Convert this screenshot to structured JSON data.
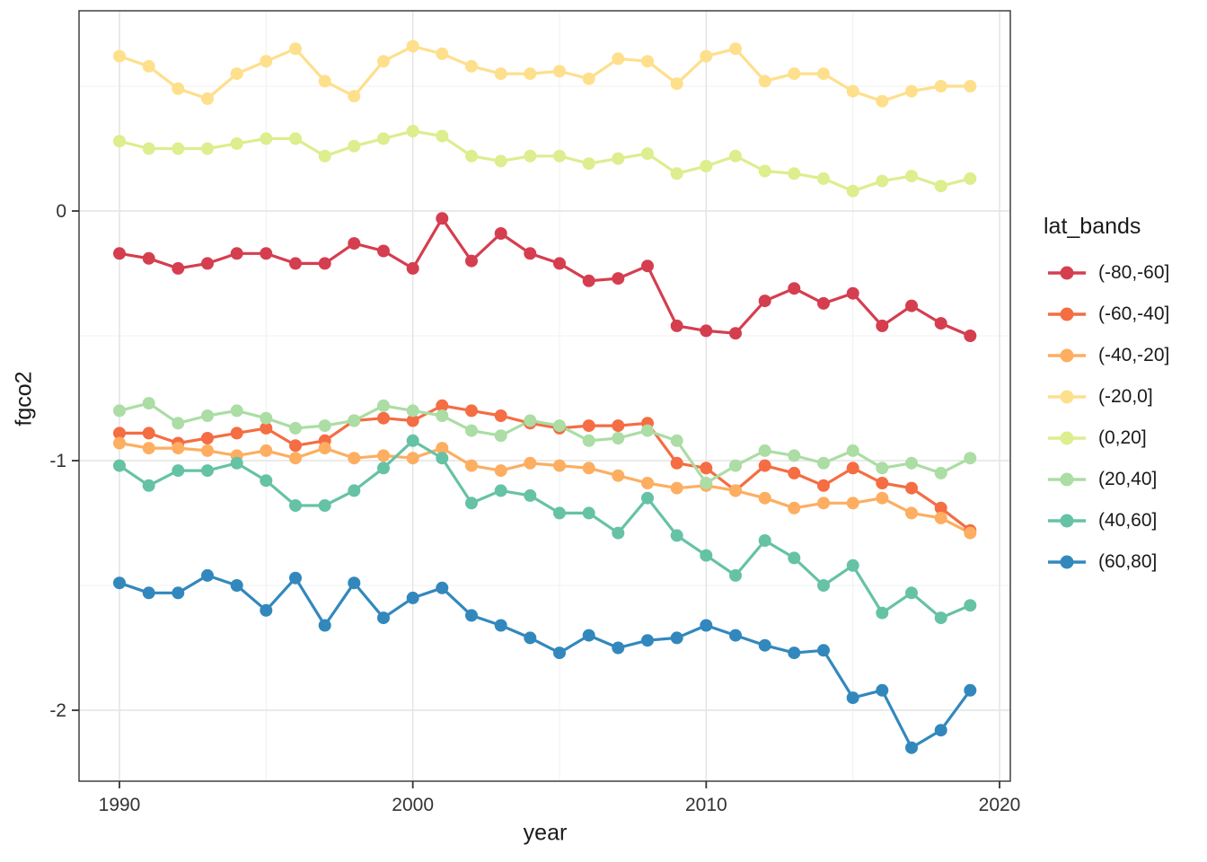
{
  "chart_data": {
    "type": "line",
    "title": "",
    "xlabel": "year",
    "ylabel": "fgco2",
    "legend_title": "lat_bands",
    "legend_position": "right",
    "grid": true,
    "marker": "point",
    "x": [
      1990,
      1991,
      1992,
      1993,
      1994,
      1995,
      1996,
      1997,
      1998,
      1999,
      2000,
      2001,
      2002,
      2003,
      2004,
      2005,
      2006,
      2007,
      2008,
      2009,
      2010,
      2011,
      2012,
      2013,
      2014,
      2015,
      2016,
      2017,
      2018,
      2019
    ],
    "x_ticks": [
      1990,
      2000,
      2010,
      2020
    ],
    "x_minor_ticks": [
      1995,
      2005,
      2015
    ],
    "y_ticks": [
      0,
      -1,
      -2
    ],
    "y_minor_ticks": [
      0.5,
      -0.5,
      -1.5
    ],
    "xlim": [
      1988.6,
      2020.4
    ],
    "ylim": [
      -2.28,
      0.8
    ],
    "series": [
      {
        "name": "(-80,-60]",
        "color": "#d53e4f",
        "values": [
          -0.17,
          -0.19,
          -0.23,
          -0.21,
          -0.17,
          -0.17,
          -0.21,
          -0.21,
          -0.13,
          -0.16,
          -0.23,
          -0.03,
          -0.2,
          -0.09,
          -0.17,
          -0.21,
          -0.28,
          -0.27,
          -0.22,
          -0.46,
          -0.48,
          -0.49,
          -0.36,
          -0.31,
          -0.37,
          -0.33,
          -0.46,
          -0.38,
          -0.45,
          -0.5
        ]
      },
      {
        "name": "(-60,-40]",
        "color": "#f46d43",
        "values": [
          -0.89,
          -0.89,
          -0.93,
          -0.91,
          -0.89,
          -0.87,
          -0.94,
          -0.92,
          -0.84,
          -0.83,
          -0.84,
          -0.78,
          -0.8,
          -0.82,
          -0.85,
          -0.87,
          -0.86,
          -0.86,
          -0.85,
          -1.01,
          -1.03,
          -1.12,
          -1.02,
          -1.05,
          -1.1,
          -1.03,
          -1.09,
          -1.11,
          -1.19,
          -1.28
        ]
      },
      {
        "name": "(-40,-20]",
        "color": "#fdae61",
        "values": [
          -0.93,
          -0.95,
          -0.95,
          -0.96,
          -0.98,
          -0.96,
          -0.99,
          -0.95,
          -0.99,
          -0.98,
          -0.99,
          -0.95,
          -1.02,
          -1.04,
          -1.01,
          -1.02,
          -1.03,
          -1.06,
          -1.09,
          -1.11,
          -1.1,
          -1.12,
          -1.15,
          -1.19,
          -1.17,
          -1.17,
          -1.15,
          -1.21,
          -1.23,
          -1.29
        ]
      },
      {
        "name": "(-20,0]",
        "color": "#fedf8c",
        "values": [
          0.62,
          0.58,
          0.49,
          0.45,
          0.55,
          0.6,
          0.65,
          0.52,
          0.46,
          0.6,
          0.66,
          0.63,
          0.58,
          0.55,
          0.55,
          0.56,
          0.53,
          0.61,
          0.6,
          0.51,
          0.62,
          0.65,
          0.52,
          0.55,
          0.55,
          0.48,
          0.44,
          0.48,
          0.5,
          0.5
        ]
      },
      {
        "name": "(0,20]",
        "color": "#dcee8d",
        "values": [
          0.28,
          0.25,
          0.25,
          0.25,
          0.27,
          0.29,
          0.29,
          0.22,
          0.26,
          0.29,
          0.32,
          0.3,
          0.22,
          0.2,
          0.22,
          0.22,
          0.19,
          0.21,
          0.23,
          0.15,
          0.18,
          0.22,
          0.16,
          0.15,
          0.13,
          0.08,
          0.12,
          0.14,
          0.1,
          0.13
        ]
      },
      {
        "name": "(20,40]",
        "color": "#abdda4",
        "values": [
          -0.8,
          -0.77,
          -0.85,
          -0.82,
          -0.8,
          -0.83,
          -0.87,
          -0.86,
          -0.84,
          -0.78,
          -0.8,
          -0.82,
          -0.88,
          -0.9,
          -0.84,
          -0.86,
          -0.92,
          -0.91,
          -0.88,
          -0.92,
          -1.09,
          -1.02,
          -0.96,
          -0.98,
          -1.01,
          -0.96,
          -1.03,
          -1.01,
          -1.05,
          -0.99
        ]
      },
      {
        "name": "(40,60]",
        "color": "#66c2a5",
        "values": [
          -1.02,
          -1.1,
          -1.04,
          -1.04,
          -1.01,
          -1.08,
          -1.18,
          -1.18,
          -1.12,
          -1.03,
          -0.92,
          -0.99,
          -1.17,
          -1.12,
          -1.14,
          -1.21,
          -1.21,
          -1.29,
          -1.15,
          -1.3,
          -1.38,
          -1.46,
          -1.32,
          -1.39,
          -1.5,
          -1.42,
          -1.61,
          -1.53,
          -1.63,
          -1.58
        ]
      },
      {
        "name": "(60,80]",
        "color": "#3288bd",
        "values": [
          -1.49,
          -1.53,
          -1.53,
          -1.46,
          -1.5,
          -1.6,
          -1.47,
          -1.66,
          -1.49,
          -1.63,
          -1.55,
          -1.51,
          -1.62,
          -1.66,
          -1.71,
          -1.77,
          -1.7,
          -1.75,
          -1.72,
          -1.71,
          -1.66,
          -1.7,
          -1.74,
          -1.77,
          -1.76,
          -1.95,
          -1.92,
          -2.15,
          -2.08,
          -1.92
        ]
      }
    ],
    "colors": {
      "background": "#ffffff",
      "panel_background": "#ffffff",
      "panel_border": "#333333",
      "grid_major": "#e4e4e4",
      "grid_minor": "#f1f1f1",
      "axis_text": "#333333",
      "axis_title_text": "#1a1a1a",
      "tick_mark": "#333333"
    }
  }
}
